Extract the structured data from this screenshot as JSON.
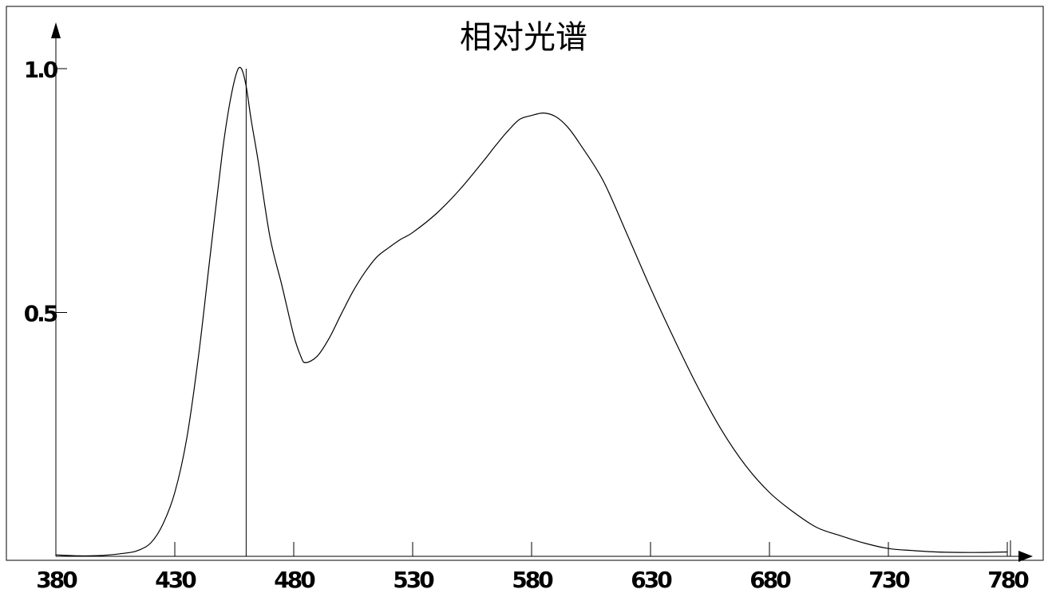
{
  "chart_data": {
    "type": "line",
    "title": "相对光谱",
    "xlabel": "",
    "ylabel": "",
    "xlim": [
      380,
      782
    ],
    "ylim": [
      0,
      1.0
    ],
    "x_ticks": [
      380,
      430,
      480,
      530,
      580,
      630,
      680,
      730,
      780
    ],
    "x_tick_labels": [
      "380",
      "430",
      "480",
      "530",
      "580",
      "630",
      "680",
      "730",
      "780"
    ],
    "y_ticks": [
      0.5,
      1.0
    ],
    "y_tick_labels": [
      "0.5",
      "1.0"
    ],
    "grid": false,
    "legend": "none",
    "peak_marker_x": 460,
    "series": [
      {
        "x": [
          380,
          390,
          400,
          410,
          415,
          420,
          425,
          430,
          435,
          440,
          445,
          450,
          453,
          456,
          458,
          460,
          462,
          465,
          470,
          475,
          480,
          483,
          485,
          490,
          495,
          500,
          505,
          510,
          515,
          520,
          525,
          530,
          540,
          550,
          560,
          565,
          570,
          575,
          580,
          585,
          590,
          595,
          600,
          610,
          620,
          630,
          640,
          650,
          660,
          670,
          680,
          690,
          700,
          710,
          720,
          730,
          740,
          750,
          760,
          770,
          780
        ],
        "y": [
          0.003,
          0.001,
          0.002,
          0.007,
          0.013,
          0.028,
          0.066,
          0.131,
          0.241,
          0.412,
          0.622,
          0.829,
          0.926,
          0.992,
          1.0,
          0.964,
          0.898,
          0.812,
          0.655,
          0.556,
          0.453,
          0.41,
          0.397,
          0.411,
          0.448,
          0.497,
          0.544,
          0.583,
          0.614,
          0.633,
          0.65,
          0.664,
          0.703,
          0.753,
          0.812,
          0.843,
          0.872,
          0.896,
          0.904,
          0.909,
          0.902,
          0.881,
          0.848,
          0.771,
          0.662,
          0.55,
          0.445,
          0.346,
          0.258,
          0.186,
          0.131,
          0.091,
          0.059,
          0.042,
          0.027,
          0.016,
          0.012,
          0.009,
          0.008,
          0.008,
          0.009
        ]
      }
    ]
  },
  "colors": {
    "line": "#000000",
    "background": "#ffffff"
  }
}
